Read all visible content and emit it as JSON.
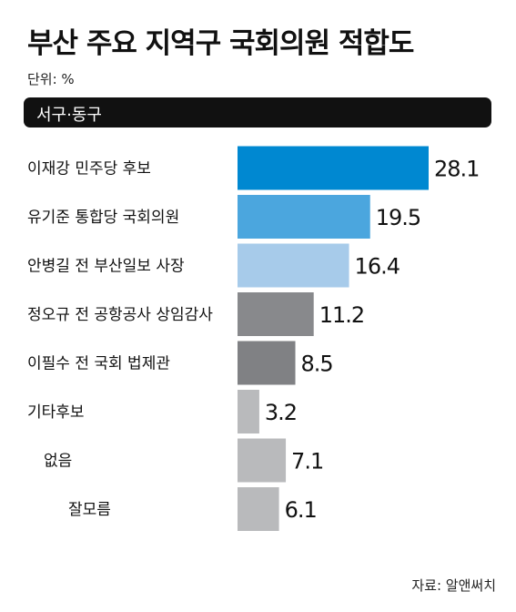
{
  "title": "부산 주요 지역구 국회의원 적합도",
  "unit": "단위: %",
  "section": "서구·동구",
  "source": "자료: 알앤써치",
  "chart_data": {
    "type": "bar",
    "orientation": "horizontal",
    "categories": [
      "이재강 민주당 후보",
      "유기준 통합당 국회의원",
      "안병길 전 부산일보 사장",
      "정오규 전 공항공사 상임감사",
      "이필수 전 국회 법제관",
      "기타후보",
      "없음",
      "잘모름"
    ],
    "values": [
      28.1,
      19.5,
      16.4,
      11.2,
      8.5,
      3.2,
      7.1,
      6.1
    ],
    "value_labels": [
      "28.1",
      "19.5",
      "16.4",
      "11.2",
      "8.5",
      "3.2",
      "7.1",
      "6.1"
    ],
    "bar_colors": [
      "#0088d1",
      "#4ba6de",
      "#a7cbea",
      "#88898c",
      "#808184",
      "#b9babc",
      "#b9babc",
      "#b9babc"
    ],
    "xlim": [
      0,
      28.1
    ],
    "grid": false,
    "legend": "none"
  }
}
